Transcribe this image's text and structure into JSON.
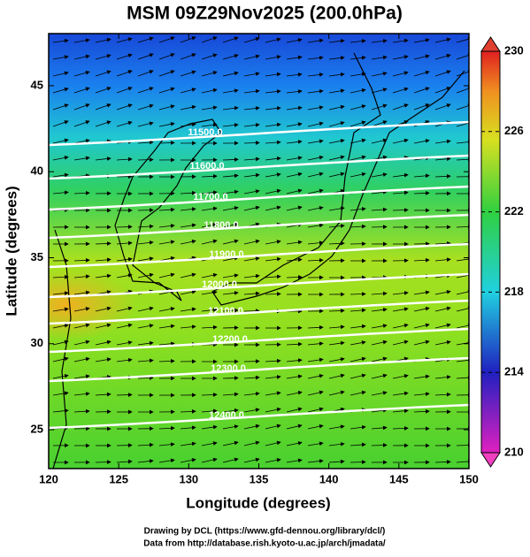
{
  "title": "MSM 09Z29Nov2025 (200.0hPa)",
  "map": {
    "x_label": "Longitude (degrees)",
    "y_label": "Latitude  (degrees)",
    "xlim": [
      120,
      150
    ],
    "ylim": [
      22.74,
      48.03
    ],
    "xticks": [
      120,
      125,
      130,
      135,
      140,
      145,
      150
    ],
    "yticks": [
      25,
      30,
      35,
      40,
      45
    ],
    "contour_labels": [
      "11500.0",
      "11600.0",
      "11700.0",
      "11800.0",
      "11900.0",
      "12000.0",
      "12100.0",
      "12200.0",
      "12300.0",
      "12400.0"
    ]
  },
  "colorbar": {
    "range": [
      210,
      230
    ],
    "ticks": [
      210,
      214,
      218,
      222,
      226,
      230
    ]
  },
  "footer": [
    "Drawing by DCL (https://www.gfd-dennou.org/library/dcl/)",
    "Data from http://database.rish.kyoto-u.ac.jp/arch/jmadata/"
  ]
}
